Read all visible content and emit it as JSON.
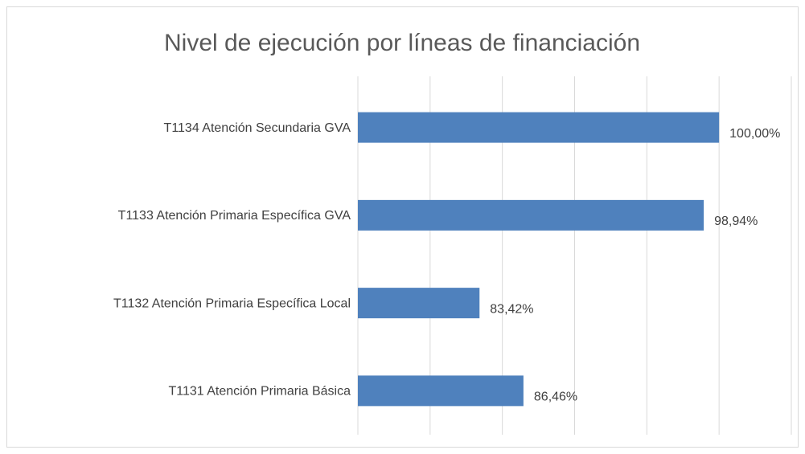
{
  "chart_data": {
    "type": "barh",
    "title": "Nivel de ejecución por líneas de financiación",
    "categories": [
      "T1134 Atención Secundaria GVA",
      "T1133 Atención Primaria Específica GVA",
      "T1132 Atención Primaria Específica Local",
      "T1131 Atención Primaria Básica"
    ],
    "values": [
      100.0,
      98.94,
      83.42,
      86.46
    ],
    "value_labels": [
      "100,00%",
      "98,94%",
      "83,42%",
      "86,46%"
    ],
    "color": "#4f81bd",
    "xlim": [
      75,
      105
    ],
    "xticks": [
      75,
      80,
      85,
      90,
      95,
      100,
      105
    ],
    "grid": true
  }
}
